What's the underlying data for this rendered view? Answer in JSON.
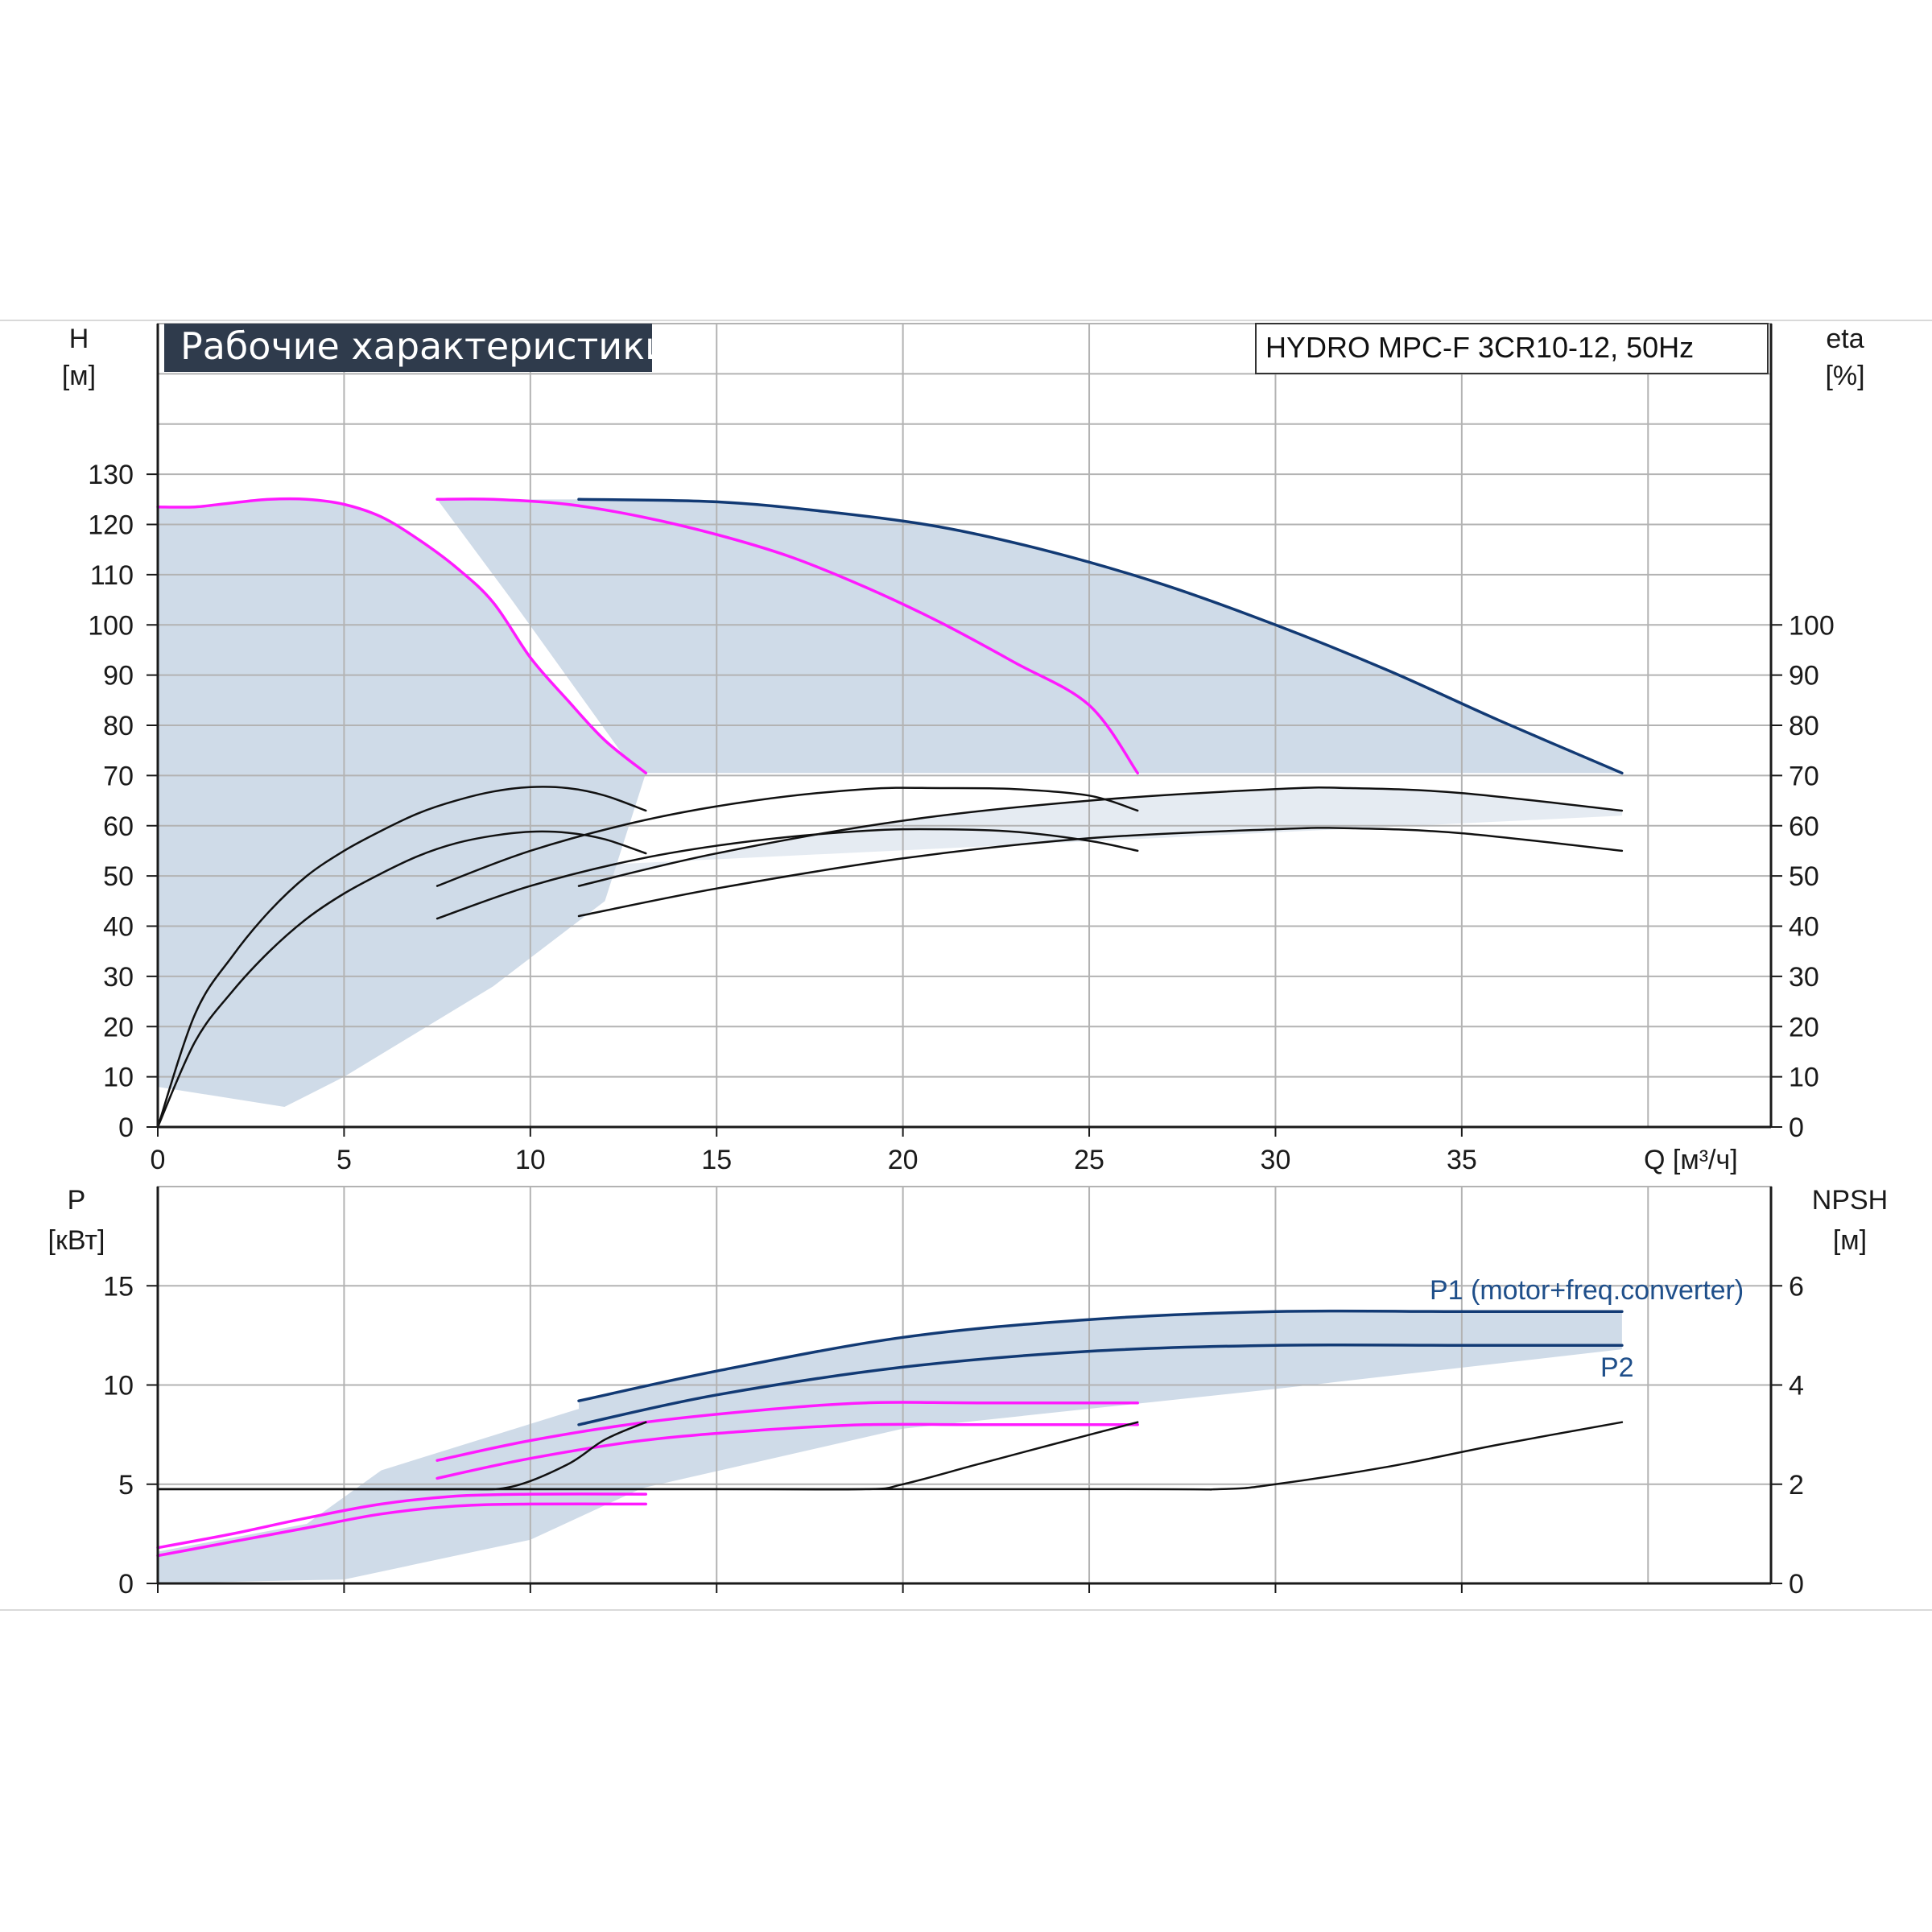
{
  "title": "Рабочие характеристики",
  "model": "HYDRO MPC-F 3CR10-12, 50Hz",
  "colors": {
    "full_speed": "#123a74",
    "reduced_speed": "#ff1aff",
    "efficiency": "#111111",
    "area_fill": "#cfdbe8",
    "grid": "#b3b3b3",
    "axis": "#1a1a1a",
    "title_bg": "#2f3b4c"
  },
  "chart_data": [
    {
      "type": "line",
      "name_panel": "head_efficiency",
      "xlabel": "Q [м³/ч]",
      "x_ticks": [
        0,
        5,
        10,
        15,
        20,
        25,
        30,
        35
      ],
      "xlim": [
        0,
        43.3
      ],
      "ylabel": {
        "symbol": "H",
        "unit": "[м]"
      },
      "y_ticks": [
        0,
        10,
        20,
        30,
        40,
        50,
        60,
        70,
        80,
        90,
        100,
        110,
        120,
        130
      ],
      "ylim": [
        0,
        160
      ],
      "y2label": {
        "symbol": "eta",
        "unit": "[%]"
      },
      "y2_ticks": [
        0,
        10,
        20,
        30,
        40,
        50,
        60,
        70,
        80,
        90,
        100
      ],
      "grid": true,
      "series": [
        {
          "id": "h_1pump_reduced",
          "role": "reduced",
          "x": [
            0,
            1,
            2,
            3,
            4,
            5,
            6,
            7,
            8,
            9,
            10,
            11,
            12,
            13.1
          ],
          "y": [
            123.5,
            123.5,
            124.3,
            125.0,
            125.0,
            124.0,
            121.5,
            117.0,
            111.5,
            104.5,
            93.5,
            85.0,
            77.0,
            70.5
          ]
        },
        {
          "id": "h_2pump_reduced",
          "role": "reduced",
          "x": [
            7.5,
            9,
            11,
            13,
            15,
            17,
            19,
            21,
            23,
            25,
            26.3
          ],
          "y": [
            125.0,
            125.0,
            124.0,
            121.5,
            118.0,
            113.5,
            107.5,
            100.5,
            92.5,
            84.0,
            70.5
          ]
        },
        {
          "id": "h_3pump_full",
          "role": "full",
          "x": [
            11.3,
            15,
            18,
            21,
            24,
            27,
            30,
            33,
            36,
            39.3
          ],
          "y": [
            125.0,
            124.5,
            122.5,
            119.5,
            114.5,
            108.0,
            100.0,
            91.0,
            81.0,
            70.5
          ]
        },
        {
          "id": "eta_1pump_a",
          "role": "eff",
          "x": [
            0,
            1,
            2,
            3,
            4,
            5,
            6,
            7,
            8,
            9,
            10,
            11,
            12,
            13.1
          ],
          "y": [
            0,
            22.5,
            34,
            43,
            50,
            55,
            59,
            62.5,
            65,
            66.8,
            67.7,
            67.5,
            66,
            63
          ]
        },
        {
          "id": "eta_1pump_b",
          "role": "eff",
          "x": [
            0,
            1,
            2,
            3,
            4,
            5,
            6,
            7,
            8,
            9,
            10,
            11,
            12,
            13.1
          ],
          "y": [
            0,
            17,
            27,
            35,
            41.5,
            46.5,
            50.5,
            54,
            56.5,
            58,
            58.8,
            58.6,
            57.3,
            54.5
          ]
        },
        {
          "id": "eta_2pump_a",
          "role": "eff",
          "x": [
            7.5,
            10,
            13,
            16,
            19,
            21,
            23,
            25,
            26.3
          ],
          "y": [
            48,
            55,
            61,
            65,
            67.3,
            67.5,
            67.3,
            66,
            63
          ]
        },
        {
          "id": "eta_2pump_b",
          "role": "eff",
          "x": [
            7.5,
            10,
            13,
            16,
            19,
            21,
            23,
            25,
            26.3
          ],
          "y": [
            41.5,
            48,
            53.5,
            57,
            59,
            59.3,
            58.8,
            57,
            55
          ]
        },
        {
          "id": "eta_3pump_a",
          "role": "eff",
          "x": [
            11.3,
            15,
            20,
            25,
            30,
            32,
            35,
            39.3
          ],
          "y": [
            48,
            54.5,
            61,
            65,
            67.3,
            67.5,
            66.5,
            63
          ]
        },
        {
          "id": "eta_3pump_b",
          "role": "eff",
          "x": [
            11.3,
            15,
            20,
            25,
            30,
            32,
            35,
            39.3
          ],
          "y": [
            42,
            47.5,
            53.5,
            57.5,
            59.3,
            59.5,
            58.5,
            55
          ]
        }
      ]
    },
    {
      "type": "line",
      "name_panel": "power_npsh",
      "x_ticks": [
        0,
        5,
        10,
        15,
        20,
        25,
        30,
        35
      ],
      "xlim": [
        0,
        43.3
      ],
      "ylabel": {
        "symbol": "P",
        "unit": "[кВт]"
      },
      "y_ticks": [
        0,
        5,
        10,
        15
      ],
      "ylim": [
        0,
        20
      ],
      "y2label": {
        "symbol": "NPSH",
        "unit": "[м]"
      },
      "y2_ticks": [
        0,
        2,
        4,
        6
      ],
      "y2lim": [
        0,
        8
      ],
      "grid": true,
      "legend_labels": [
        "P1 (motor+freq.converter)",
        "P2"
      ],
      "series": [
        {
          "id": "p1_3pump",
          "role": "full",
          "x": [
            11.3,
            15,
            20,
            25,
            30,
            35,
            39.3
          ],
          "y": [
            9.2,
            10.7,
            12.4,
            13.3,
            13.7,
            13.7,
            13.7
          ]
        },
        {
          "id": "p2_3pump",
          "role": "full",
          "x": [
            11.3,
            15,
            20,
            25,
            30,
            35,
            39.3
          ],
          "y": [
            8.0,
            9.5,
            10.9,
            11.7,
            12.0,
            12.0,
            12.0
          ]
        },
        {
          "id": "p1_2pump",
          "role": "reduced",
          "x": [
            7.5,
            10,
            13,
            16,
            19,
            22,
            26.3
          ],
          "y": [
            6.2,
            7.2,
            8.1,
            8.7,
            9.1,
            9.1,
            9.1
          ]
        },
        {
          "id": "p2_2pump",
          "role": "reduced",
          "x": [
            7.5,
            10,
            13,
            16,
            19,
            22,
            26.3
          ],
          "y": [
            5.3,
            6.3,
            7.2,
            7.7,
            8.0,
            8.0,
            8.0
          ]
        },
        {
          "id": "p1_1pump",
          "role": "reduced",
          "x": [
            0,
            2,
            4,
            6,
            8,
            10,
            13.1
          ],
          "y": [
            1.8,
            2.5,
            3.3,
            4.0,
            4.4,
            4.5,
            4.5
          ]
        },
        {
          "id": "p2_1pump",
          "role": "reduced",
          "x": [
            0,
            2,
            4,
            6,
            8,
            10,
            13.1
          ],
          "y": [
            1.4,
            2.1,
            2.8,
            3.5,
            3.9,
            4.0,
            4.0
          ]
        },
        {
          "id": "npsh_1pump",
          "role": "eff",
          "axis": "y2",
          "x": [
            0,
            5,
            8,
            9.5,
            11,
            12,
            13.1
          ],
          "y": [
            1.9,
            1.9,
            1.9,
            1.95,
            2.4,
            2.9,
            3.25
          ]
        },
        {
          "id": "npsh_2pump",
          "role": "eff",
          "axis": "y2",
          "x": [
            0,
            15,
            19,
            20,
            22,
            24,
            26.3
          ],
          "y": [
            1.9,
            1.9,
            1.9,
            2.0,
            2.4,
            2.8,
            3.25
          ]
        },
        {
          "id": "npsh_3pump",
          "role": "eff",
          "axis": "y2",
          "x": [
            0,
            25,
            28.5,
            30,
            33,
            36,
            39.3
          ],
          "y": [
            1.9,
            1.9,
            1.9,
            2.0,
            2.35,
            2.8,
            3.25
          ]
        }
      ]
    }
  ]
}
